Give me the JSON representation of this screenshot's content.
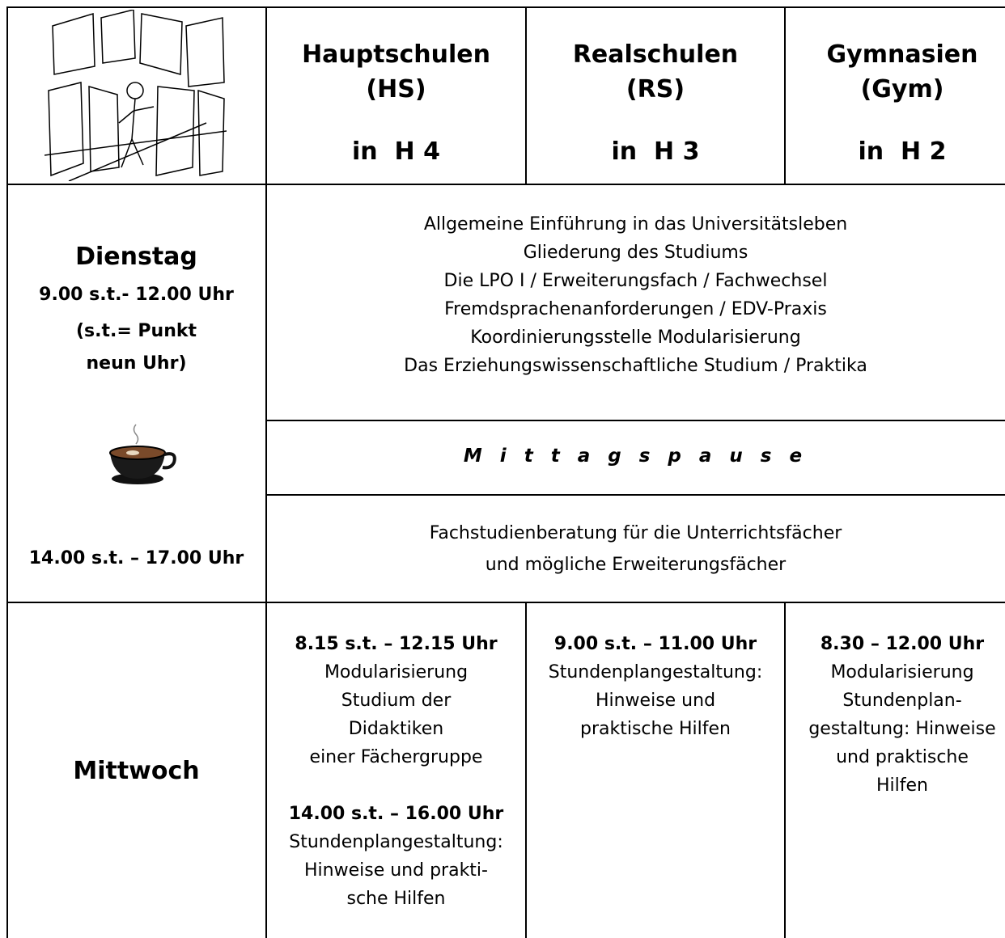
{
  "header": {
    "columns": [
      {
        "name": "Hauptschulen",
        "abbr": "(HS)",
        "room": "in  H 4"
      },
      {
        "name": "Realschulen",
        "abbr": "(RS)",
        "room": "in  H 3"
      },
      {
        "name": "Gymnasien",
        "abbr": "(Gym)",
        "room": "in  H 2"
      }
    ]
  },
  "dienstag": {
    "day": "Dienstag",
    "morning_time": "9.00 s.t.- 12.00 Uhr",
    "note": [
      "(s.t.= Punkt",
      "neun Uhr)"
    ],
    "morning_topics": [
      "Allgemeine Einführung in das Universitätsleben",
      "Gliederung des Studiums",
      "Die LPO I / Erweiterungsfach / Fachwechsel",
      "Fremdsprachenanforderungen / EDV-Praxis",
      "Koordinierungsstelle Modularisierung",
      "Das Erziehungswissenschaftliche Studium / Praktika"
    ],
    "break": "M i t t a g s p a u s e",
    "afternoon_time": "14.00 s.t. – 17.00 Uhr",
    "afternoon_topics": [
      "Fachstudienberatung für die Unterrichtsfächer",
      "und mögliche Erweiterungsfächer"
    ]
  },
  "mittwoch": {
    "day": "Mittwoch",
    "columns": [
      {
        "blocks": [
          {
            "time": "8.15 s.t. – 12.15 Uhr",
            "lines": [
              "Modularisierung",
              "Studium der",
              "Didaktiken",
              "einer Fächergruppe"
            ]
          },
          {
            "time": "14.00 s.t. – 16.00 Uhr",
            "lines": [
              "Stundenplangestaltung:",
              "Hinweise und prakti-",
              "sche Hilfen"
            ]
          }
        ]
      },
      {
        "blocks": [
          {
            "time": "9.00 s.t. – 11.00 Uhr",
            "lines": [
              "Stundenplangestaltung:",
              "Hinweise und",
              "praktische Hilfen"
            ]
          }
        ]
      },
      {
        "blocks": [
          {
            "time": "8.30 – 12.00 Uhr",
            "lines": [
              "Modularisierung",
              "Stundenplan-",
              "gestaltung: Hinweise",
              "und praktische",
              "Hilfen"
            ]
          }
        ]
      }
    ]
  }
}
